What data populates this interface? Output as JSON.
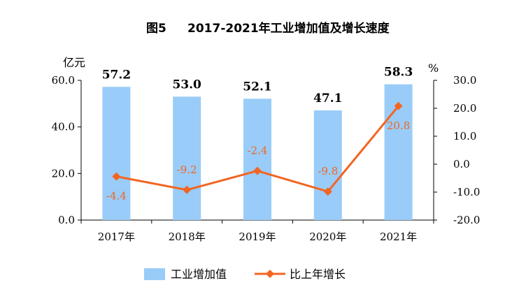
{
  "chart_data": {
    "type": "bar",
    "title_prefix": "图5",
    "title": "2017-2021年工业增加值及增长速度",
    "categories": [
      "2017年",
      "2018年",
      "2019年",
      "2020年",
      "2021年"
    ],
    "series": [
      {
        "name": "工业增加值",
        "type": "bar",
        "axis": "left",
        "color": "#99ccf8",
        "values": [
          57.2,
          53.0,
          52.1,
          47.1,
          58.3
        ],
        "labels": [
          "57.2",
          "53.0",
          "52.1",
          "47.1",
          "58.3"
        ]
      },
      {
        "name": "比上年增长",
        "type": "line",
        "axis": "right",
        "color": "#f26522",
        "values": [
          -4.4,
          -9.2,
          -2.4,
          -9.8,
          20.8
        ],
        "labels": [
          "-4.4",
          "-9.2",
          "-2.4",
          "-9.8",
          "20.8"
        ]
      }
    ],
    "left_axis": {
      "unit": "亿元",
      "ylim": [
        0,
        60
      ],
      "ticks": [
        "0.0",
        "20.0",
        "40.0",
        "60.0"
      ],
      "tick_values": [
        0,
        20,
        40,
        60
      ]
    },
    "right_axis": {
      "unit": "%",
      "ylim": [
        -20,
        30
      ],
      "ticks": [
        "-20.0",
        "-10.0",
        "0.0",
        "10.0",
        "20.0",
        "30.0"
      ],
      "tick_values": [
        -20,
        -10,
        0,
        10,
        20,
        30
      ]
    },
    "grid": false,
    "legend_position": "bottom"
  }
}
